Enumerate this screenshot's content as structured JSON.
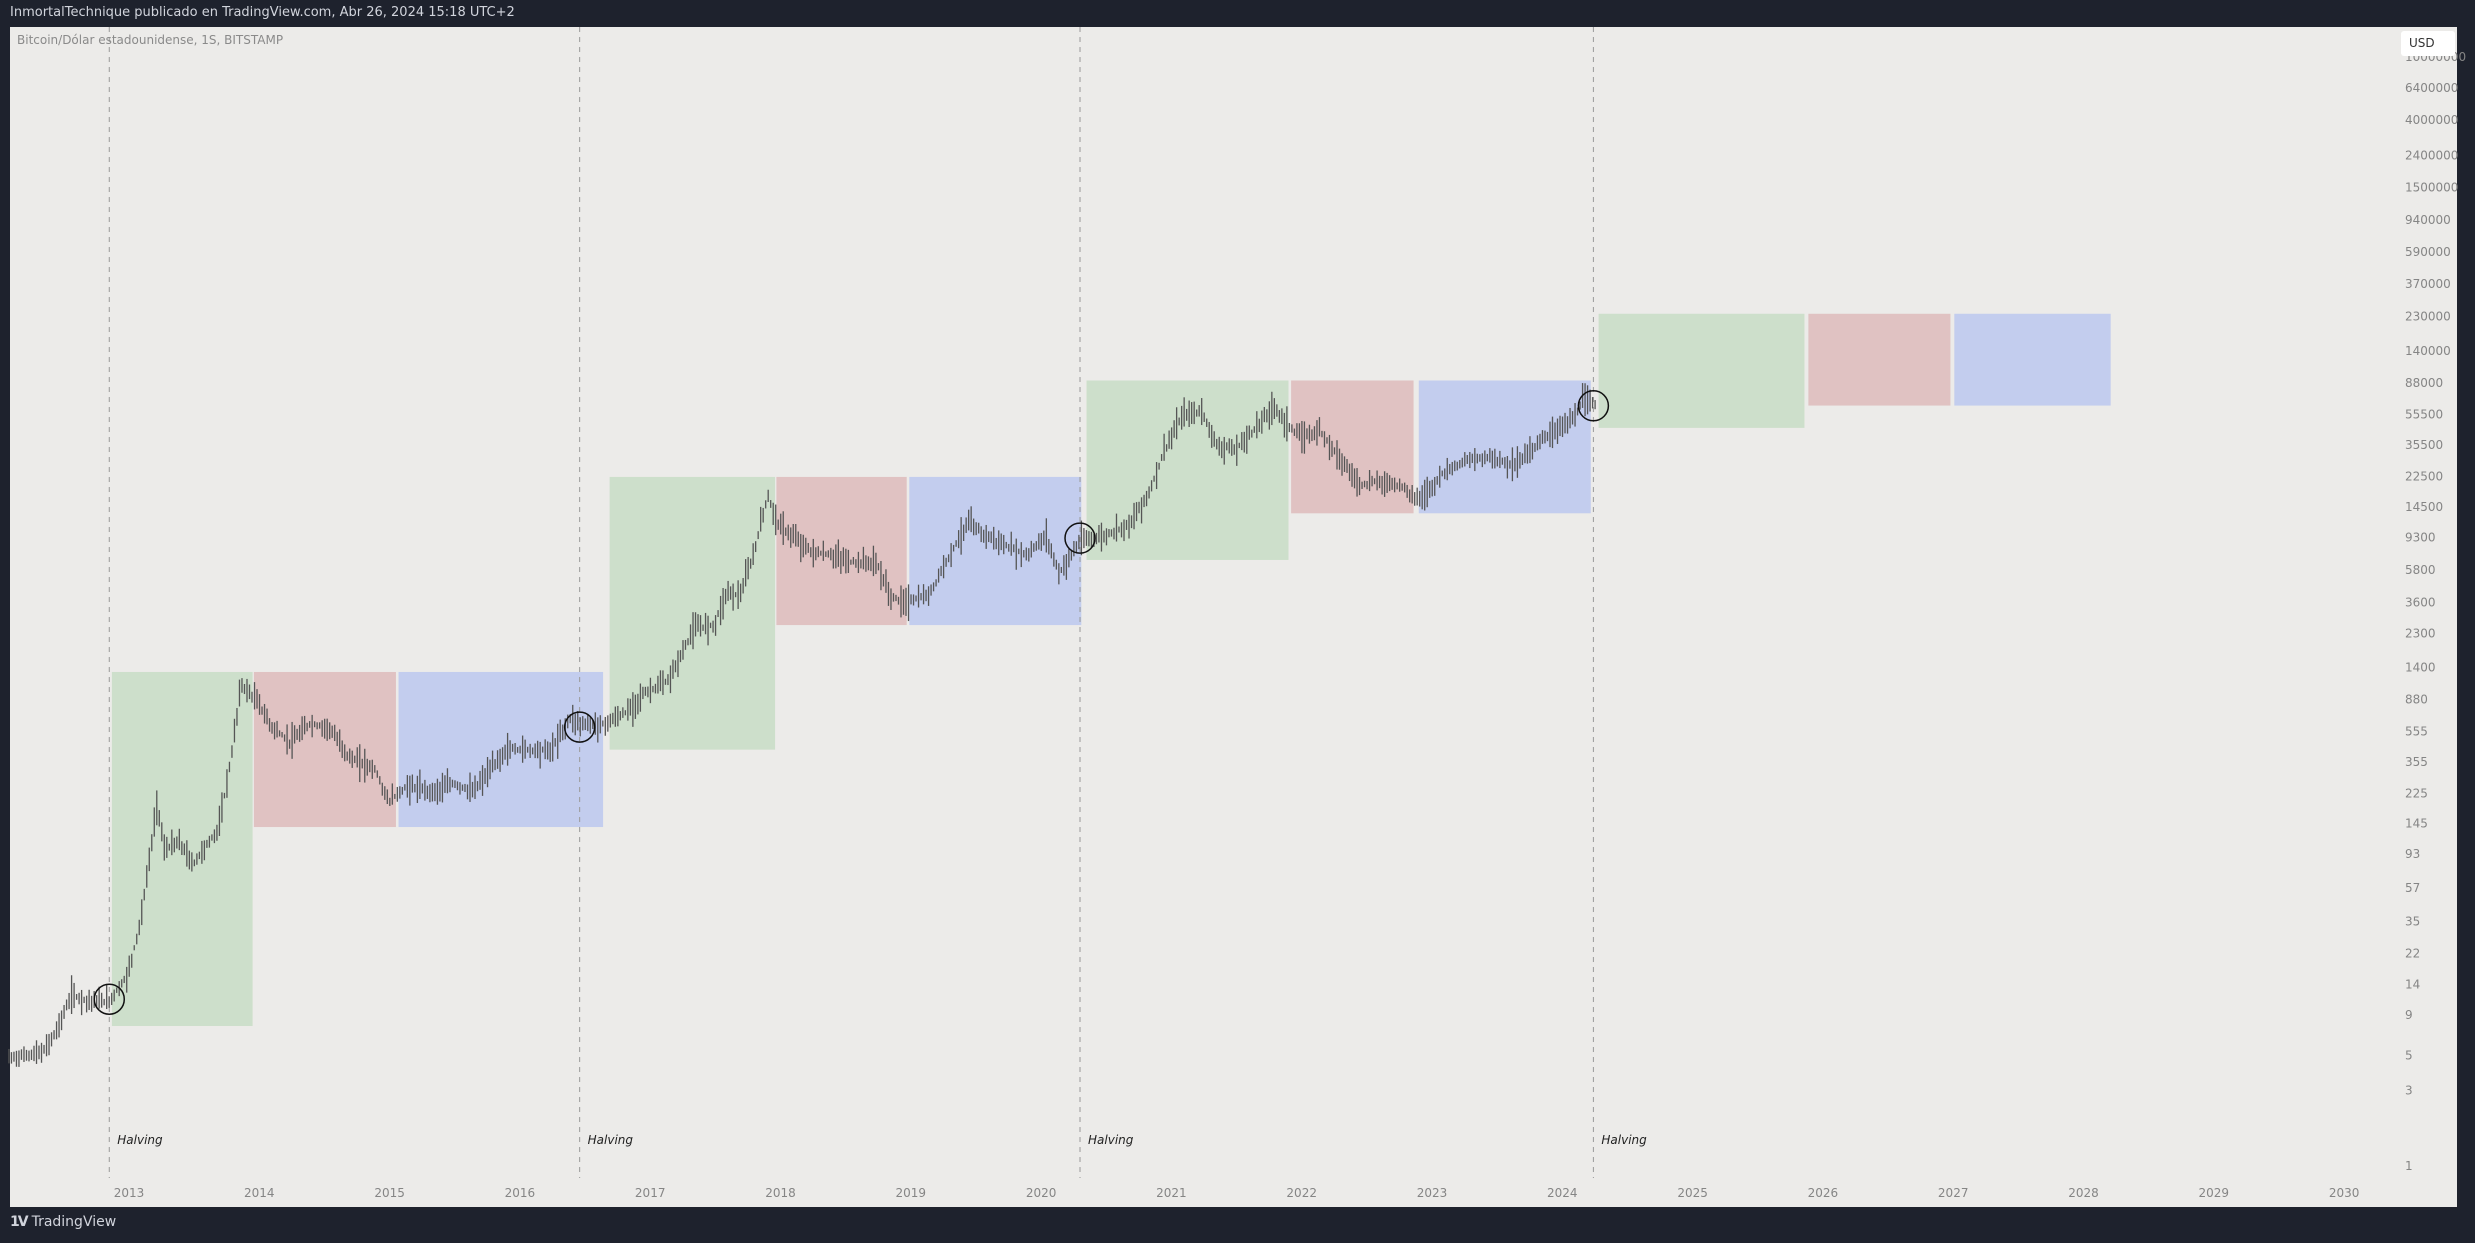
{
  "header": {
    "published": "InmortalTechnique publicado en TradingView.com, Abr 26, 2024 15:18 UTC+2"
  },
  "symbol_info": "Bitcoin/Dólar estadounidense, 1S, BITSTAMP",
  "currency_button": "USD",
  "footer": {
    "brand": "TradingView",
    "logo_mark": "TV"
  },
  "colors": {
    "background": "#1e222d",
    "pane": "#ecebe9",
    "accumulation": "#cddfcb",
    "bear": "#e0c2c2",
    "range": "#c3cdee",
    "bars": "#555555"
  },
  "chart_data": {
    "type": "line",
    "title": "Bitcoin/Dólar estadounidense, 1S, BITSTAMP",
    "scale": "log",
    "ylim": [
      0.5,
      12000000
    ],
    "xlim": [
      2012.14,
      2030.9
    ],
    "y_ticks": [
      "10000000",
      "6400000",
      "4000000",
      "2400000",
      "1500000",
      "940000",
      "590000",
      "370000",
      "230000",
      "140000",
      "88000",
      "55500",
      "35500",
      "22500",
      "14500",
      "9300",
      "5800",
      "3600",
      "2300",
      "1400",
      "880",
      "555",
      "355",
      "225",
      "145",
      "93",
      "57",
      "35",
      "22",
      "14",
      "9",
      "5",
      "3",
      "1"
    ],
    "x_ticks": [
      "2013",
      "2014",
      "2015",
      "2016",
      "2017",
      "2018",
      "2019",
      "2020",
      "2021",
      "2022",
      "2023",
      "2024",
      "2025",
      "2026",
      "2027",
      "2028",
      "2029",
      "2030"
    ],
    "halvings": [
      {
        "label": "Halving",
        "t": 2012.91,
        "price": 11.3
      },
      {
        "label": "Halving",
        "t": 2016.52,
        "price": 590
      },
      {
        "label": "Halving",
        "t": 2020.36,
        "price": 9200
      },
      {
        "label": "Halving",
        "t": 2024.3,
        "price": 63000
      }
    ],
    "boxes": [
      {
        "kind": "accumulation",
        "t0": 2012.93,
        "t1": 2014.01,
        "low": 7.65,
        "high": 1315
      },
      {
        "kind": "bear",
        "t0": 2014.02,
        "t1": 2015.11,
        "low": 138,
        "high": 1315
      },
      {
        "kind": "range",
        "t0": 2015.13,
        "t1": 2016.7,
        "low": 138,
        "high": 1315
      },
      {
        "kind": "accumulation",
        "t0": 2016.75,
        "t1": 2018.02,
        "low": 425,
        "high": 22400
      },
      {
        "kind": "bear",
        "t0": 2018.03,
        "t1": 2019.03,
        "low": 2600,
        "high": 22400
      },
      {
        "kind": "range",
        "t0": 2019.05,
        "t1": 2020.37,
        "low": 2600,
        "high": 22400
      },
      {
        "kind": "accumulation",
        "t0": 2020.41,
        "t1": 2021.96,
        "low": 6700,
        "high": 91000
      },
      {
        "kind": "bear",
        "t0": 2021.98,
        "t1": 2022.92,
        "low": 13200,
        "high": 91000
      },
      {
        "kind": "range",
        "t0": 2022.96,
        "t1": 2024.28,
        "low": 13200,
        "high": 91000
      },
      {
        "kind": "accumulation",
        "t0": 2024.34,
        "t1": 2025.92,
        "low": 45700,
        "high": 240000
      },
      {
        "kind": "bear",
        "t0": 2025.95,
        "t1": 2027.04,
        "low": 63200,
        "high": 240000
      },
      {
        "kind": "range",
        "t0": 2027.07,
        "t1": 2028.27,
        "low": 63200,
        "high": 240000
      }
    ],
    "series": [
      {
        "name": "BTCUSD weekly",
        "points": [
          [
            2012.14,
            4.8
          ],
          [
            2012.4,
            5.2
          ],
          [
            2012.5,
            7
          ],
          [
            2012.62,
            12
          ],
          [
            2012.75,
            11
          ],
          [
            2012.91,
            11
          ],
          [
            2013.05,
            16
          ],
          [
            2013.15,
            35
          ],
          [
            2013.28,
            200
          ],
          [
            2013.33,
            100
          ],
          [
            2013.45,
            110
          ],
          [
            2013.55,
            80
          ],
          [
            2013.75,
            135
          ],
          [
            2013.85,
            400
          ],
          [
            2013.92,
            1100
          ],
          [
            2014.05,
            850
          ],
          [
            2014.15,
            600
          ],
          [
            2014.3,
            470
          ],
          [
            2014.45,
            620
          ],
          [
            2014.6,
            580
          ],
          [
            2014.75,
            380
          ],
          [
            2014.95,
            320
          ],
          [
            2015.05,
            200
          ],
          [
            2015.2,
            250
          ],
          [
            2015.4,
            230
          ],
          [
            2015.55,
            260
          ],
          [
            2015.7,
            230
          ],
          [
            2015.85,
            330
          ],
          [
            2015.97,
            430
          ],
          [
            2016.3,
            420
          ],
          [
            2016.45,
            680
          ],
          [
            2016.52,
            620
          ],
          [
            2016.7,
            610
          ],
          [
            2016.9,
            750
          ],
          [
            2017.0,
            950
          ],
          [
            2017.2,
            1150
          ],
          [
            2017.4,
            2500
          ],
          [
            2017.55,
            2600
          ],
          [
            2017.65,
            4200
          ],
          [
            2017.75,
            4000
          ],
          [
            2017.85,
            7000
          ],
          [
            2017.96,
            17000
          ],
          [
            2018.05,
            11000
          ],
          [
            2018.15,
            9500
          ],
          [
            2018.3,
            7500
          ],
          [
            2018.45,
            7200
          ],
          [
            2018.6,
            6500
          ],
          [
            2018.8,
            6400
          ],
          [
            2018.9,
            4000
          ],
          [
            2019.0,
            3600
          ],
          [
            2019.2,
            4000
          ],
          [
            2019.35,
            7000
          ],
          [
            2019.5,
            11500
          ],
          [
            2019.6,
            10000
          ],
          [
            2019.75,
            8500
          ],
          [
            2019.95,
            7200
          ],
          [
            2020.1,
            9500
          ],
          [
            2020.2,
            5500
          ],
          [
            2020.36,
            8800
          ],
          [
            2020.55,
            9500
          ],
          [
            2020.75,
            11500
          ],
          [
            2020.9,
            18500
          ],
          [
            2021.0,
            32000
          ],
          [
            2021.15,
            55000
          ],
          [
            2021.3,
            58000
          ],
          [
            2021.4,
            36000
          ],
          [
            2021.55,
            33000
          ],
          [
            2021.7,
            45000
          ],
          [
            2021.85,
            62000
          ],
          [
            2021.95,
            48000
          ],
          [
            2022.05,
            40000
          ],
          [
            2022.2,
            44000
          ],
          [
            2022.35,
            30000
          ],
          [
            2022.5,
            20000
          ],
          [
            2022.65,
            21000
          ],
          [
            2022.85,
            19500
          ],
          [
            2022.9,
            16500
          ],
          [
            2023.0,
            17000
          ],
          [
            2023.15,
            24000
          ],
          [
            2023.3,
            28000
          ],
          [
            2023.5,
            30000
          ],
          [
            2023.7,
            26500
          ],
          [
            2023.85,
            35000
          ],
          [
            2023.98,
            43000
          ],
          [
            2024.15,
            52000
          ],
          [
            2024.22,
            68000
          ],
          [
            2024.32,
            64000
          ]
        ]
      }
    ]
  }
}
